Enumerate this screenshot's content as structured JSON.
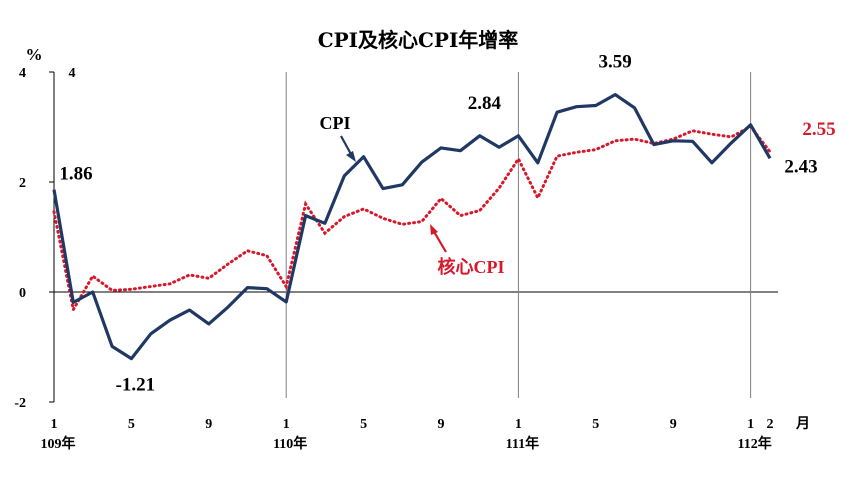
{
  "chart_data": {
    "type": "line",
    "title": "CPI及核心CPI年增率",
    "ylabel": "%",
    "ylim": [
      -2,
      4
    ],
    "ytick_labels": [
      "4",
      "2",
      "0",
      "-2"
    ],
    "ytick_right_label": "4",
    "xunit_label": "月",
    "month_ticks": [
      "1",
      "5",
      "9",
      "1",
      "5",
      "9",
      "1",
      "5",
      "9",
      "1",
      "2"
    ],
    "year_labels": [
      "109年",
      "110年",
      "111年",
      "112年"
    ],
    "x": [
      "109-01",
      "109-02",
      "109-03",
      "109-04",
      "109-05",
      "109-06",
      "109-07",
      "109-08",
      "109-09",
      "109-10",
      "109-11",
      "109-12",
      "110-01",
      "110-02",
      "110-03",
      "110-04",
      "110-05",
      "110-06",
      "110-07",
      "110-08",
      "110-09",
      "110-10",
      "110-11",
      "110-12",
      "111-01",
      "111-02",
      "111-03",
      "111-04",
      "111-05",
      "111-06",
      "111-07",
      "111-08",
      "111-09",
      "111-10",
      "111-11",
      "111-12",
      "112-01",
      "112-02"
    ],
    "series": [
      {
        "name": "CPI",
        "color": "#1f3864",
        "style": "solid",
        "values": [
          1.86,
          -0.19,
          0.0,
          -0.99,
          -1.21,
          -0.76,
          -0.51,
          -0.33,
          -0.58,
          -0.27,
          0.08,
          0.06,
          -0.18,
          1.39,
          1.25,
          2.11,
          2.46,
          1.88,
          1.95,
          2.36,
          2.62,
          2.57,
          2.84,
          2.63,
          2.84,
          2.35,
          3.27,
          3.37,
          3.39,
          3.59,
          3.35,
          2.68,
          2.75,
          2.74,
          2.35,
          2.71,
          3.04,
          2.43
        ]
      },
      {
        "name": "核心CPI",
        "color": "#d7182a",
        "style": "dotted",
        "values": [
          1.46,
          -0.32,
          0.29,
          0.03,
          0.05,
          0.1,
          0.15,
          0.31,
          0.25,
          0.51,
          0.75,
          0.66,
          0.1,
          1.6,
          1.07,
          1.37,
          1.51,
          1.34,
          1.23,
          1.28,
          1.7,
          1.39,
          1.48,
          1.89,
          2.42,
          1.71,
          2.47,
          2.54,
          2.59,
          2.75,
          2.78,
          2.7,
          2.78,
          2.93,
          2.87,
          2.82,
          3.01,
          2.55
        ]
      }
    ],
    "annotations": [
      {
        "text": "1.86",
        "series": "CPI",
        "index": 0
      },
      {
        "text": "-1.21",
        "series": "CPI",
        "index": 4
      },
      {
        "text": "2.84",
        "series": "CPI",
        "index": 24
      },
      {
        "text": "3.59",
        "series": "CPI",
        "index": 29
      },
      {
        "text": "2.43",
        "series": "CPI",
        "index": 37
      },
      {
        "text": "2.55",
        "series": "核心CPI",
        "index": 37
      }
    ],
    "grid": false,
    "legend": "inline arrow labels"
  }
}
